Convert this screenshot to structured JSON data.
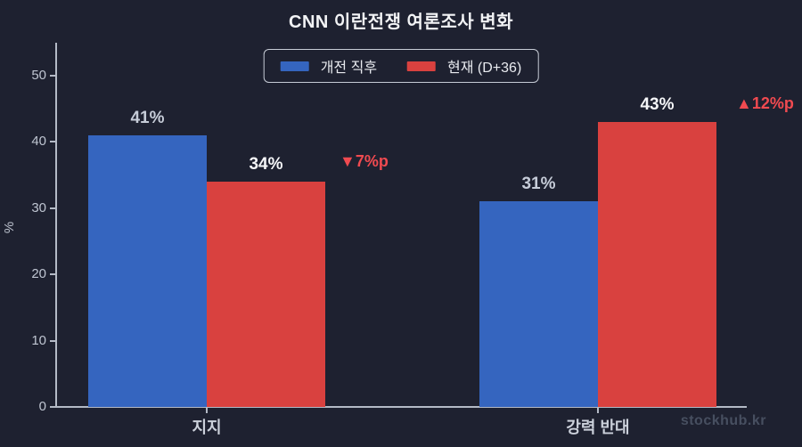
{
  "title": "CNN 이란전쟁 여론조사 변화",
  "watermark": "stockhub.kr",
  "colors": {
    "background": "#1e2130",
    "axis": "#b4bac6",
    "annotation_red": "#f04a50",
    "watermark_gray": "#474f60"
  },
  "chart_data": {
    "type": "bar",
    "title": "CNN 이란전쟁 여론조사 변화",
    "categories": [
      "지지",
      "강력 반대"
    ],
    "series": [
      {
        "name": "개전 직후",
        "color": "#3565bf",
        "label_color": "#c6ccd8",
        "values": [
          41,
          31
        ],
        "value_labels": [
          "41%",
          "31%"
        ]
      },
      {
        "name": "현재 (D+36)",
        "color": "#d9413f",
        "label_color": "#f5f6f8",
        "values": [
          34,
          43
        ],
        "value_labels": [
          "34%",
          "43%"
        ]
      }
    ],
    "ylabel": "%",
    "ylim": [
      0,
      55
    ],
    "yticks": [
      0,
      10,
      20,
      30,
      40,
      50
    ],
    "grid": false,
    "legend_position": "top-center",
    "annotations": [
      {
        "text": "▼7%p",
        "category": "지지",
        "color": "#f04a50"
      },
      {
        "text": "▲12%p",
        "category": "강력 반대",
        "color": "#f04a50"
      }
    ]
  }
}
